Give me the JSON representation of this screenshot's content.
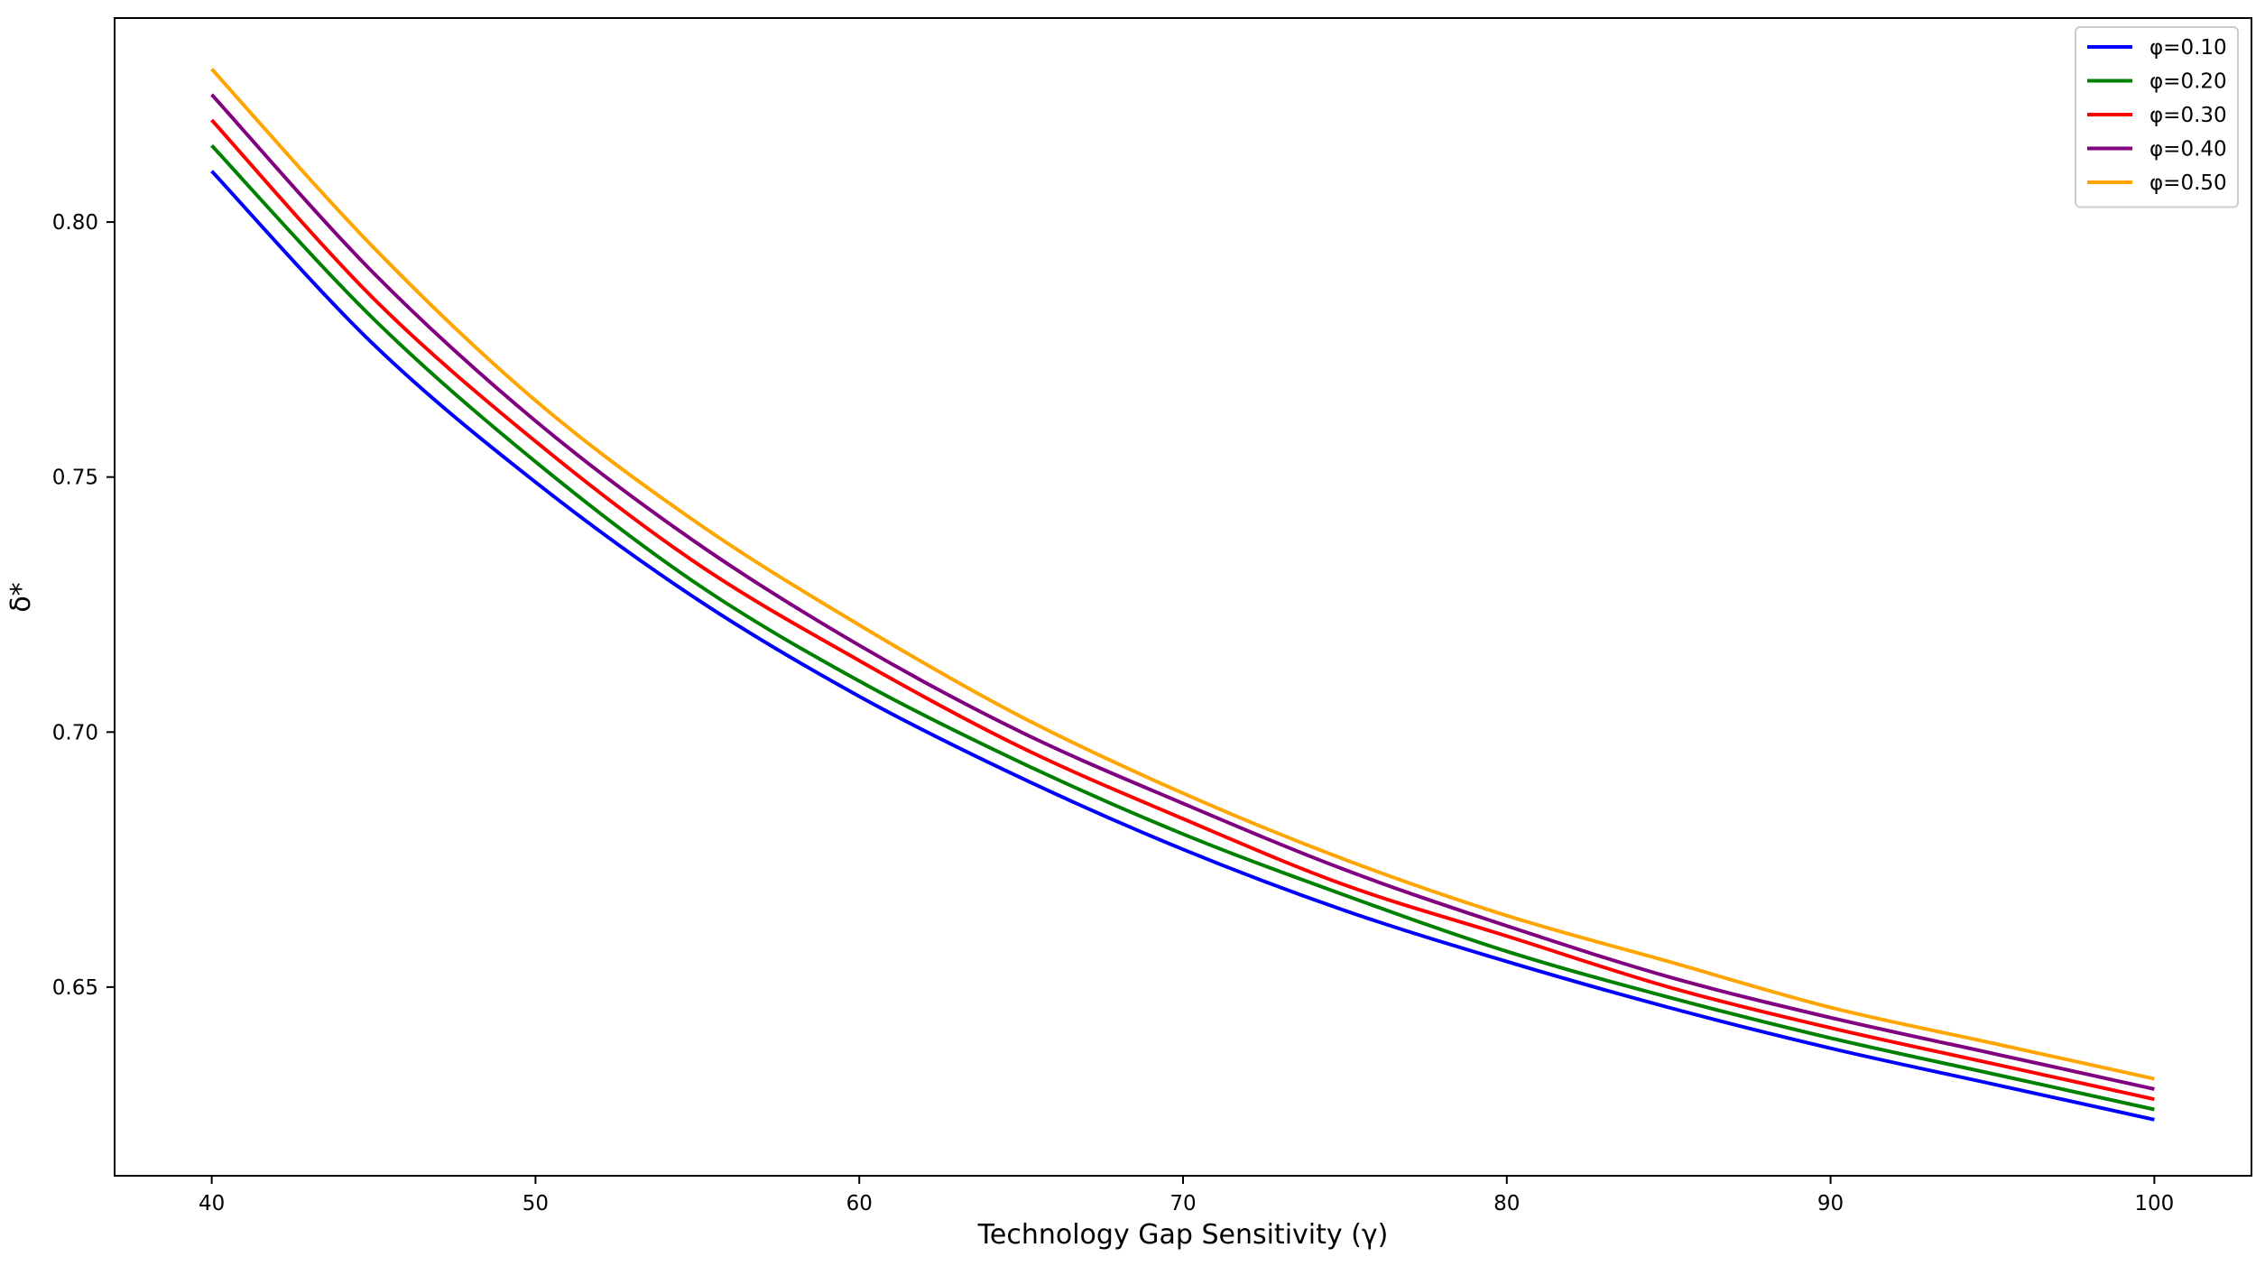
{
  "chart_data": {
    "type": "line",
    "title": "",
    "xlabel": "Technology Gap Sensitivity (γ)",
    "ylabel": "δ*",
    "xlim": [
      37,
      103
    ],
    "ylim": [
      0.613,
      0.84
    ],
    "x_ticks": [
      40,
      50,
      60,
      70,
      80,
      90,
      100
    ],
    "x_tick_labels": [
      "40",
      "50",
      "60",
      "70",
      "80",
      "90",
      "100"
    ],
    "y_ticks": [
      0.65,
      0.7,
      0.75,
      0.8
    ],
    "y_tick_labels": [
      "0.65",
      "0.70",
      "0.75",
      "0.80"
    ],
    "grid": false,
    "legend_position": "top-right",
    "x": [
      40,
      45,
      50,
      55,
      60,
      65,
      70,
      75,
      80,
      85,
      90,
      95,
      100
    ],
    "series": [
      {
        "name": "φ=0.10",
        "color": "#0000ff",
        "values": [
          0.81,
          0.776,
          0.749,
          0.726,
          0.707,
          0.691,
          0.677,
          0.665,
          0.655,
          0.646,
          0.638,
          0.631,
          0.624
        ]
      },
      {
        "name": "φ=0.20",
        "color": "#008000",
        "values": [
          0.815,
          0.781,
          0.753,
          0.729,
          0.71,
          0.694,
          0.68,
          0.668,
          0.657,
          0.648,
          0.64,
          0.633,
          0.626
        ]
      },
      {
        "name": "φ=0.30",
        "color": "#ff0000",
        "values": [
          0.82,
          0.785,
          0.757,
          0.733,
          0.714,
          0.697,
          0.683,
          0.67,
          0.66,
          0.65,
          0.642,
          0.635,
          0.628
        ]
      },
      {
        "name": "φ=0.40",
        "color": "#800080",
        "values": [
          0.825,
          0.79,
          0.761,
          0.737,
          0.717,
          0.7,
          0.686,
          0.673,
          0.662,
          0.652,
          0.644,
          0.637,
          0.63
        ]
      },
      {
        "name": "φ=0.50",
        "color": "#ffa500",
        "values": [
          0.83,
          0.795,
          0.765,
          0.741,
          0.721,
          0.703,
          0.688,
          0.675,
          0.664,
          0.655,
          0.646,
          0.639,
          0.632
        ]
      }
    ]
  }
}
